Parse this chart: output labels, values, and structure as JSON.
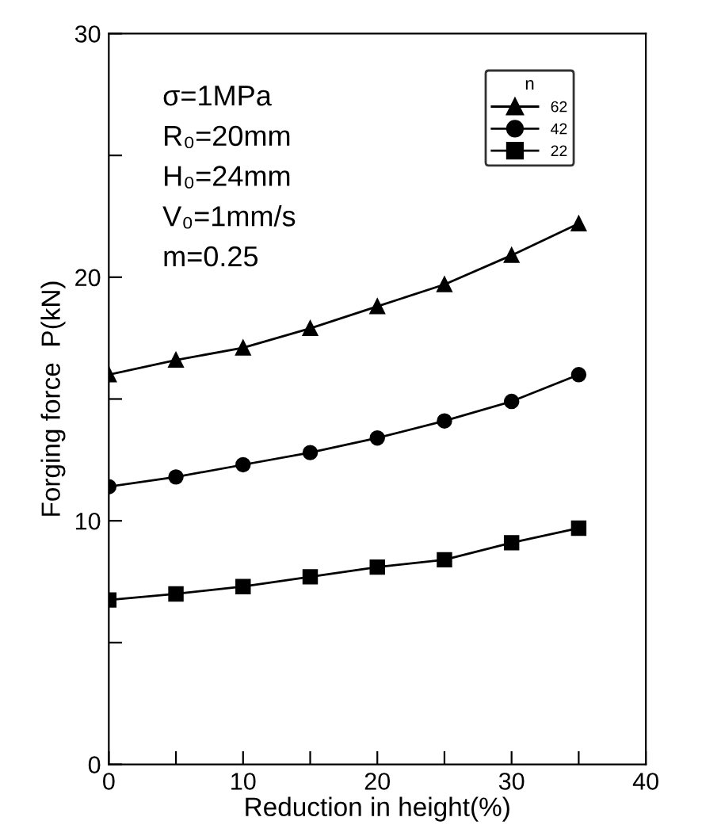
{
  "chart_data": {
    "type": "line",
    "xlabel": "Reduction in height(%)",
    "ylabel": "Forging force  P(kN)",
    "x": [
      0,
      5,
      10,
      15,
      20,
      25,
      30,
      35
    ],
    "series": [
      {
        "name": "62",
        "color": "#000000",
        "marker": "triangle",
        "values": [
          16.0,
          16.6,
          17.1,
          17.9,
          18.8,
          19.7,
          20.9,
          22.2
        ]
      },
      {
        "name": "42",
        "color": "#000000",
        "marker": "circle",
        "values": [
          11.4,
          11.8,
          12.3,
          12.8,
          13.4,
          14.1,
          14.9,
          16.0
        ]
      },
      {
        "name": "22",
        "color": "#000000",
        "marker": "square",
        "values": [
          6.75,
          7.0,
          7.3,
          7.7,
          8.1,
          8.4,
          9.1,
          9.7
        ]
      }
    ],
    "legend_title": "n",
    "legend": "top right",
    "line_style": "solid",
    "annotations": [
      "σ=1MPa",
      "R₀=20mm",
      "H₀=24mm",
      "V₀=1mm/s",
      "m=0.25"
    ],
    "xlim": [
      0,
      40
    ],
    "ylim": [
      0,
      30
    ],
    "xticks": [
      0,
      {
        "value": 5,
        "label": null
      },
      10,
      {
        "value": 15,
        "label": null
      },
      20,
      {
        "value": 25,
        "label": null
      },
      30,
      {
        "value": 35,
        "label": null
      },
      40
    ],
    "yticks": [
      0,
      {
        "value": 5,
        "label": null
      },
      10,
      {
        "value": 15,
        "label": null
      },
      20,
      {
        "value": 25,
        "label": null
      },
      30
    ],
    "grid": false
  }
}
